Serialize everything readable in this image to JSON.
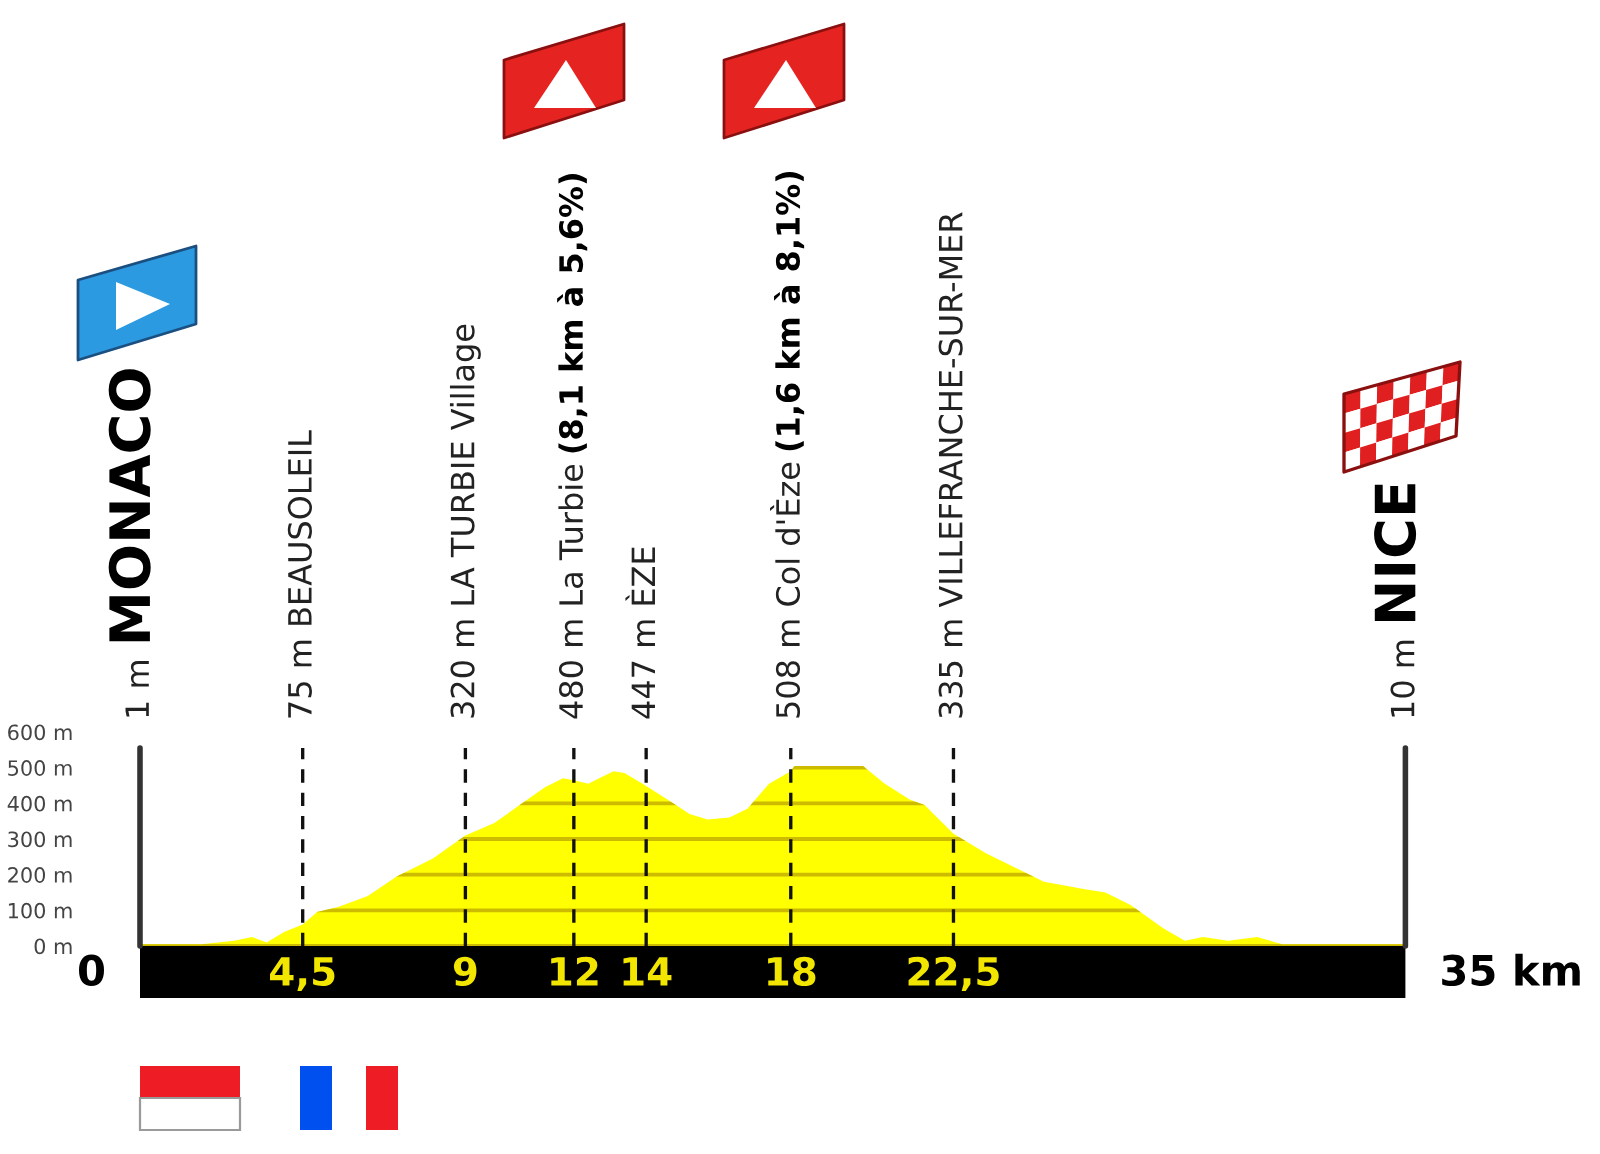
{
  "chart_data": {
    "type": "area",
    "color": "#ffff00",
    "x": [
      0,
      1.7,
      2.6,
      3.1,
      3.5,
      4.0,
      4.5,
      4.9,
      5.5,
      6.3,
      7.1,
      8.1,
      9.0,
      9.8,
      10.5,
      11.2,
      11.7,
      12.0,
      12.4,
      12.7,
      13.1,
      13.4,
      13.9,
      14.6,
      15.2,
      15.7,
      16.3,
      16.8,
      17.4,
      18.0,
      18.1,
      20.0,
      20.6,
      21.3,
      21.7,
      22.5,
      23.4,
      24.3,
      25.0,
      26.1,
      26.7,
      27.4,
      28.3,
      28.9,
      29.4,
      30.1,
      30.9,
      31.6,
      35
    ],
    "values": [
      5,
      5,
      15,
      25,
      10,
      40,
      60,
      95,
      110,
      140,
      195,
      245,
      310,
      345,
      395,
      445,
      470,
      465,
      455,
      470,
      490,
      485,
      455,
      410,
      370,
      355,
      360,
      385,
      455,
      490,
      505,
      505,
      455,
      410,
      395,
      315,
      260,
      215,
      180,
      160,
      150,
      115,
      50,
      15,
      25,
      15,
      25,
      5,
      5
    ],
    "xlim": [
      0,
      35
    ],
    "xticks": [
      {
        "value": 4.5,
        "label": "4,5"
      },
      9,
      12,
      14,
      18,
      {
        "value": 22.5,
        "label": "22,5"
      }
    ],
    "ylim": [
      0,
      600
    ],
    "yticks": [
      {
        "value": 0,
        "label": "0 m"
      },
      {
        "value": 100,
        "label": "100 m"
      },
      {
        "value": 200,
        "label": "200 m"
      },
      {
        "value": 300,
        "label": "300 m"
      },
      {
        "value": 400,
        "label": "400 m"
      },
      {
        "value": 500,
        "label": "500 m"
      },
      {
        "value": 600,
        "label": "600 m"
      }
    ],
    "grid": "y",
    "ref_lines": [
      {
        "axis": "x",
        "value": 0,
        "label": "1 m\nMONACO",
        "color": "#333333",
        "line_style": "solid"
      },
      {
        "axis": "x",
        "value": 4.5,
        "label": "75 m BEAUSOLEIL",
        "color": "#111111",
        "line_style": "dashed"
      },
      {
        "axis": "x",
        "value": 9,
        "label": "320 m LA TURBIE Village",
        "color": "#111111",
        "line_style": "dashed"
      },
      {
        "axis": "x",
        "value": 12,
        "label": "480 m La Turbie\n(8,1 km à 5,6%)",
        "color": "#111111",
        "line_style": "dashed"
      },
      {
        "axis": "x",
        "value": 14,
        "label": "447 m ÈZE",
        "color": "#111111",
        "line_style": "dashed"
      },
      {
        "axis": "x",
        "value": 18,
        "label": "508 m Col d'Èze\n(1,6 km à 8,1%)",
        "color": "#111111",
        "line_style": "dashed"
      },
      {
        "axis": "x",
        "value": 22.5,
        "label": "335 m VILLEFRANCHE-SUR-MER",
        "color": "#111111",
        "line_style": "dashed"
      },
      {
        "axis": "x",
        "value": 35,
        "label": "10 m\nNICE",
        "color": "#333333",
        "line_style": "solid"
      }
    ],
    "annotations": [
      {
        "text": "0",
        "x": 0,
        "y": 0
      },
      {
        "text": "35 km",
        "x": 35,
        "y": 0
      }
    ]
  }
}
